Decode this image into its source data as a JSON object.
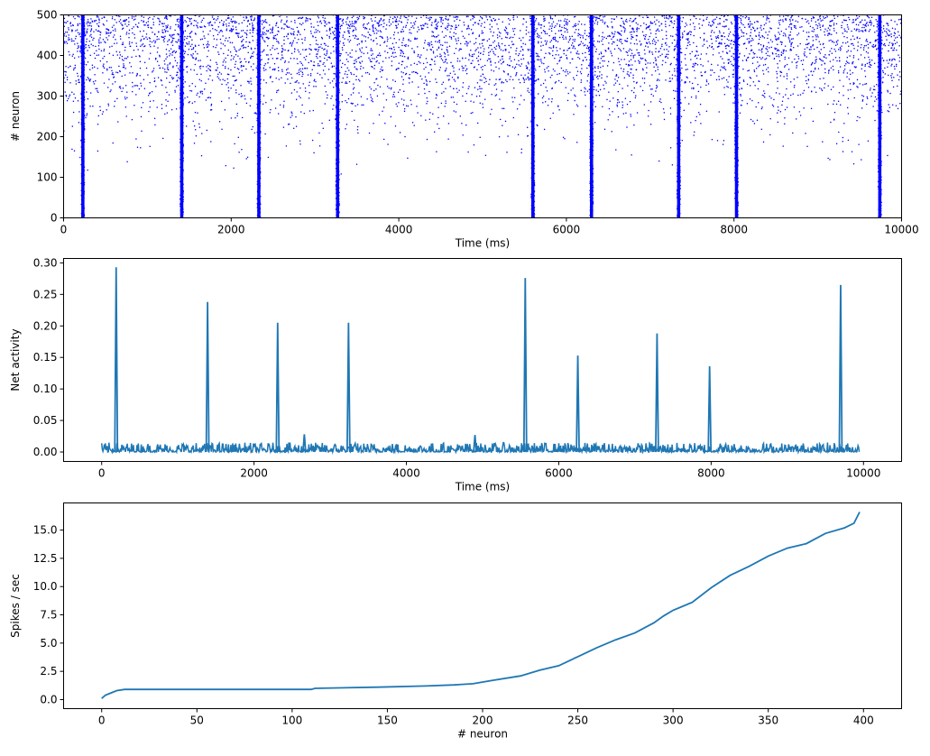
{
  "chart_data": [
    {
      "type": "scatter",
      "xlabel": "Time (ms)",
      "ylabel": "# neuron",
      "xlim": [
        0,
        10000
      ],
      "ylim": [
        0,
        500
      ],
      "xticks": [
        "0",
        "2000",
        "4000",
        "6000",
        "8000",
        "10000"
      ],
      "yticks": [
        "0",
        "100",
        "200",
        "300",
        "400",
        "500"
      ],
      "marker_color": "#0000ff",
      "grid": false,
      "burst_times": [
        230,
        1410,
        2330,
        3270,
        5600,
        6300,
        7340,
        8030,
        9740
      ],
      "density_profile": {
        "neuron": [
          0,
          100,
          150,
          200,
          250,
          300,
          350,
          400,
          450,
          500
        ],
        "relative_density": [
          0.0,
          0.0,
          0.02,
          0.05,
          0.12,
          0.3,
          0.5,
          0.75,
          0.95,
          1.0
        ]
      }
    },
    {
      "type": "line",
      "xlabel": "Time (ms)",
      "ylabel": "Net activity",
      "xlim": [
        -500,
        10500
      ],
      "ylim": [
        -0.015,
        0.307
      ],
      "xticks": [
        "0",
        "2000",
        "4000",
        "6000",
        "8000",
        "10000"
      ],
      "yticks": [
        "0.00",
        "0.05",
        "0.10",
        "0.15",
        "0.20",
        "0.25",
        "0.30"
      ],
      "line_color": "#1f77b4",
      "grid": false,
      "baseline_range": [
        0.0,
        0.015
      ],
      "peaks": [
        {
          "x": 190,
          "y": 0.293
        },
        {
          "x": 1390,
          "y": 0.238
        },
        {
          "x": 2310,
          "y": 0.205
        },
        {
          "x": 2660,
          "y": 0.028
        },
        {
          "x": 3240,
          "y": 0.205
        },
        {
          "x": 4900,
          "y": 0.027
        },
        {
          "x": 5560,
          "y": 0.276
        },
        {
          "x": 6250,
          "y": 0.153
        },
        {
          "x": 7290,
          "y": 0.188
        },
        {
          "x": 7980,
          "y": 0.136
        },
        {
          "x": 9700,
          "y": 0.265
        }
      ]
    },
    {
      "type": "line",
      "xlabel": "# neuron",
      "ylabel": "Spikes / sec",
      "xlim": [
        -20,
        420
      ],
      "ylim": [
        -0.8,
        17.4
      ],
      "xticks": [
        "0",
        "50",
        "100",
        "150",
        "200",
        "250",
        "300",
        "350",
        "400"
      ],
      "yticks": [
        "0.0",
        "2.5",
        "5.0",
        "7.5",
        "10.0",
        "12.5",
        "15.0"
      ],
      "line_color": "#1f77b4",
      "grid": false,
      "x": [
        0,
        2,
        5,
        8,
        12,
        50,
        110,
        112,
        145,
        170,
        185,
        195,
        205,
        220,
        230,
        240,
        245,
        250,
        260,
        270,
        280,
        290,
        295,
        300,
        310,
        320,
        330,
        340,
        350,
        360,
        370,
        380,
        390,
        395,
        398
      ],
      "y": [
        0.1,
        0.4,
        0.6,
        0.8,
        0.9,
        0.9,
        0.9,
        1.0,
        1.1,
        1.2,
        1.3,
        1.4,
        1.7,
        2.1,
        2.6,
        3.0,
        3.4,
        3.8,
        4.6,
        5.3,
        5.9,
        6.8,
        7.4,
        7.9,
        8.6,
        9.9,
        11.0,
        11.8,
        12.7,
        13.4,
        13.8,
        14.7,
        15.2,
        15.6,
        16.6
      ]
    }
  ]
}
